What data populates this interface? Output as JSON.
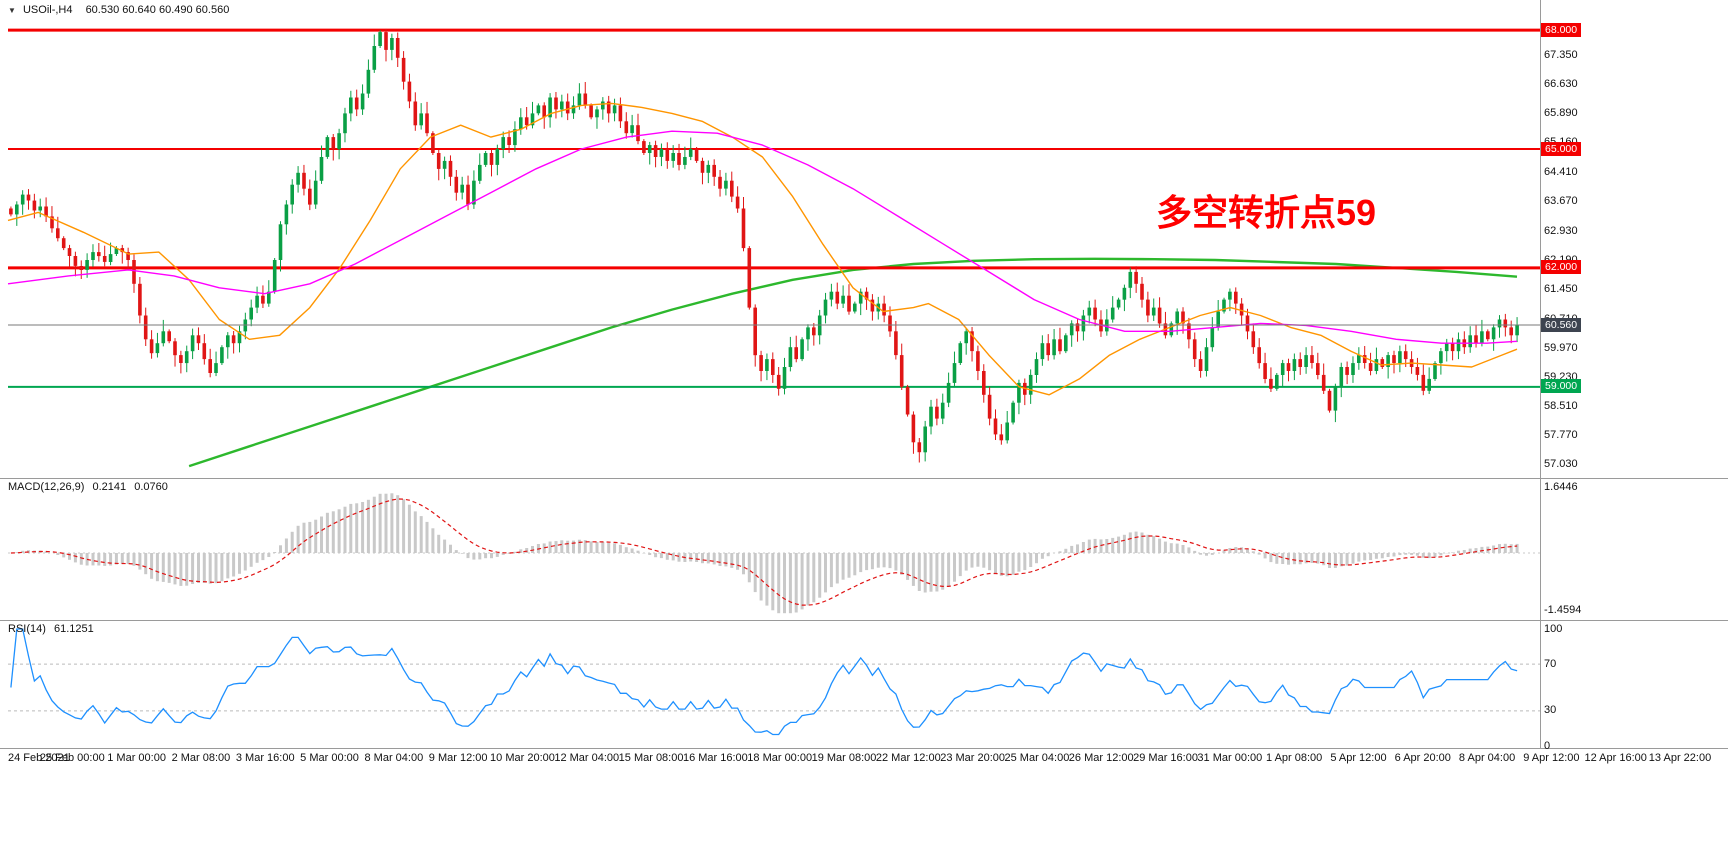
{
  "header": {
    "collapse_icon": "▼",
    "symbol_timeframe": "USOil-,H4",
    "ohlc": "60.530 60.640 60.490 60.560"
  },
  "annotation": {
    "text": "多空转折点59",
    "color": "#ff0000"
  },
  "colors": {
    "background": "#ffffff",
    "pane_border": "#9a9a9a",
    "text": "#111111",
    "up_candle": "#0a9f45",
    "down_candle": "#e01515",
    "resistance_line": "#f40000",
    "support_line": "#00a651",
    "current_price_badge": "#3d4450"
  },
  "chart_data": [
    {
      "type": "candlestick",
      "symbol": "USOil-",
      "timeframe": "H4",
      "ohlc_display": {
        "open": "60.530",
        "high": "60.640",
        "low": "60.490",
        "close": "60.560"
      },
      "ylim": [
        56.7,
        68.76
      ],
      "y_ticks": [
        "67.350",
        "66.630",
        "65.890",
        "65.160",
        "64.410",
        "63.670",
        "62.930",
        "62.190",
        "61.450",
        "60.710",
        "59.970",
        "59.230",
        "58.510",
        "57.770",
        "57.030"
      ],
      "hlines": [
        {
          "price": 68.0,
          "label": "68.000",
          "color": "#f40000",
          "width": 3
        },
        {
          "price": 65.0,
          "label": "65.000",
          "color": "#f40000",
          "width": 2
        },
        {
          "price": 62.0,
          "label": "62.000",
          "color": "#f40000",
          "width": 3
        },
        {
          "price": 59.0,
          "label": "59.000",
          "color": "#00a651",
          "width": 2
        }
      ],
      "current_price": {
        "value": 60.56,
        "label": "60.560",
        "line_color": "#7a7a7a",
        "badge_color": "#3d4450"
      },
      "up_color": "#0a9f45",
      "down_color": "#e01515",
      "x_labels": [
        "24 Feb 2021",
        "25 Feb 00:00",
        "1 Mar 00:00",
        "2 Mar 08:00",
        "3 Mar 16:00",
        "5 Mar 00:00",
        "8 Mar 04:00",
        "9 Mar 12:00",
        "10 Mar 20:00",
        "12 Mar 04:00",
        "15 Mar 08:00",
        "16 Mar 16:00",
        "18 Mar 00:00",
        "19 Mar 08:00",
        "22 Mar 12:00",
        "23 Mar 20:00",
        "25 Mar 04:00",
        "26 Mar 12:00",
        "29 Mar 16:00",
        "31 Mar 00:00",
        "1 Apr 08:00",
        "5 Apr 12:00",
        "6 Apr 20:00",
        "8 Apr 04:00",
        "9 Apr 12:00",
        "12 Apr 16:00",
        "13 Apr 22:00"
      ],
      "closes": [
        63.35,
        63.6,
        63.85,
        63.7,
        63.45,
        63.55,
        63.3,
        63.0,
        62.75,
        62.5,
        62.3,
        62.05,
        61.95,
        62.2,
        62.4,
        62.3,
        62.15,
        62.35,
        62.5,
        62.4,
        62.2,
        61.6,
        60.8,
        60.2,
        59.85,
        60.1,
        60.4,
        60.15,
        59.8,
        59.6,
        59.9,
        60.3,
        60.1,
        59.7,
        59.35,
        59.6,
        60.0,
        60.3,
        60.1,
        60.4,
        60.7,
        61.0,
        61.3,
        61.1,
        61.4,
        62.2,
        63.1,
        63.6,
        64.1,
        64.4,
        64.0,
        63.6,
        64.2,
        64.8,
        65.3,
        65.0,
        65.4,
        65.9,
        66.3,
        66.0,
        66.4,
        67.0,
        67.6,
        67.95,
        67.5,
        67.8,
        67.3,
        66.7,
        66.2,
        65.6,
        65.9,
        65.4,
        64.9,
        64.5,
        64.7,
        64.3,
        63.9,
        64.1,
        63.6,
        64.2,
        64.6,
        64.9,
        64.6,
        65.0,
        65.3,
        65.1,
        65.5,
        65.8,
        65.6,
        65.9,
        66.1,
        65.8,
        66.3,
        66.0,
        66.2,
        65.9,
        66.1,
        66.4,
        66.1,
        65.8,
        66.0,
        66.2,
        65.9,
        66.1,
        65.7,
        65.4,
        65.6,
        65.2,
        64.9,
        65.1,
        64.8,
        65.0,
        64.7,
        64.9,
        64.6,
        64.8,
        65.0,
        64.7,
        64.4,
        64.6,
        64.3,
        64.0,
        64.2,
        63.8,
        63.5,
        62.5,
        61.0,
        59.8,
        59.4,
        59.7,
        59.3,
        58.95,
        59.5,
        60.0,
        59.7,
        60.2,
        60.5,
        60.3,
        60.8,
        61.2,
        61.4,
        61.1,
        61.3,
        60.9,
        61.1,
        61.4,
        61.2,
        60.9,
        61.1,
        60.8,
        60.4,
        59.8,
        59.0,
        58.3,
        57.6,
        57.35,
        58.0,
        58.5,
        58.2,
        58.6,
        59.1,
        59.6,
        60.1,
        60.4,
        59.9,
        59.4,
        58.8,
        58.2,
        57.8,
        57.65,
        58.1,
        58.6,
        59.1,
        58.8,
        59.3,
        59.7,
        60.1,
        59.8,
        60.2,
        59.9,
        60.3,
        60.6,
        60.4,
        60.8,
        61.0,
        60.7,
        60.4,
        60.7,
        61.0,
        61.2,
        61.5,
        61.9,
        61.6,
        61.2,
        60.8,
        61.0,
        60.6,
        60.3,
        60.6,
        60.9,
        60.6,
        60.2,
        59.7,
        59.4,
        60.0,
        60.5,
        60.9,
        61.2,
        61.4,
        61.1,
        60.8,
        60.4,
        60.0,
        59.6,
        59.2,
        58.95,
        59.3,
        59.6,
        59.4,
        59.7,
        59.5,
        59.8,
        59.6,
        59.3,
        58.9,
        58.4,
        59.0,
        59.5,
        59.3,
        59.6,
        59.8,
        59.6,
        59.4,
        59.7,
        59.5,
        59.8,
        59.6,
        59.9,
        59.7,
        59.5,
        59.3,
        58.9,
        59.2,
        59.6,
        59.9,
        60.1,
        59.9,
        60.2,
        60.0,
        60.3,
        60.1,
        60.4,
        60.2,
        60.5,
        60.7,
        60.5,
        60.3,
        60.56
      ],
      "ma_lines": [
        {
          "name": "ma-orange-line",
          "color": "#ff9500",
          "width": 1.4,
          "points": [
            [
              0,
              63.2
            ],
            [
              0.02,
              63.4
            ],
            [
              0.05,
              62.9
            ],
            [
              0.08,
              62.35
            ],
            [
              0.1,
              62.4
            ],
            [
              0.12,
              61.7
            ],
            [
              0.14,
              60.7
            ],
            [
              0.16,
              60.2
            ],
            [
              0.18,
              60.3
            ],
            [
              0.2,
              61.0
            ],
            [
              0.22,
              62.0
            ],
            [
              0.24,
              63.2
            ],
            [
              0.26,
              64.5
            ],
            [
              0.28,
              65.3
            ],
            [
              0.3,
              65.6
            ],
            [
              0.32,
              65.3
            ],
            [
              0.34,
              65.5
            ],
            [
              0.36,
              65.9
            ],
            [
              0.38,
              66.1
            ],
            [
              0.4,
              66.15
            ],
            [
              0.42,
              66.05
            ],
            [
              0.44,
              65.9
            ],
            [
              0.46,
              65.7
            ],
            [
              0.48,
              65.3
            ],
            [
              0.5,
              64.8
            ],
            [
              0.52,
              63.8
            ],
            [
              0.54,
              62.6
            ],
            [
              0.56,
              61.5
            ],
            [
              0.58,
              60.9
            ],
            [
              0.6,
              61.0
            ],
            [
              0.61,
              61.1
            ],
            [
              0.63,
              60.7
            ],
            [
              0.65,
              59.8
            ],
            [
              0.67,
              59.0
            ],
            [
              0.69,
              58.8
            ],
            [
              0.71,
              59.2
            ],
            [
              0.73,
              59.8
            ],
            [
              0.75,
              60.2
            ],
            [
              0.77,
              60.5
            ],
            [
              0.79,
              60.8
            ],
            [
              0.81,
              61.0
            ],
            [
              0.83,
              60.8
            ],
            [
              0.85,
              60.5
            ],
            [
              0.87,
              60.3
            ],
            [
              0.89,
              59.9
            ],
            [
              0.91,
              59.55
            ],
            [
              0.93,
              59.6
            ],
            [
              0.95,
              59.55
            ],
            [
              0.97,
              59.5
            ],
            [
              0.99,
              59.8
            ],
            [
              1,
              59.95
            ]
          ]
        },
        {
          "name": "ma-magenta-line",
          "color": "#ff00ff",
          "width": 1.4,
          "points": [
            [
              0,
              61.6
            ],
            [
              0.04,
              61.8
            ],
            [
              0.08,
              61.95
            ],
            [
              0.11,
              61.8
            ],
            [
              0.14,
              61.5
            ],
            [
              0.17,
              61.35
            ],
            [
              0.2,
              61.6
            ],
            [
              0.23,
              62.1
            ],
            [
              0.26,
              62.7
            ],
            [
              0.29,
              63.3
            ],
            [
              0.32,
              63.9
            ],
            [
              0.35,
              64.5
            ],
            [
              0.38,
              65.0
            ],
            [
              0.41,
              65.3
            ],
            [
              0.44,
              65.45
            ],
            [
              0.47,
              65.4
            ],
            [
              0.5,
              65.1
            ],
            [
              0.53,
              64.6
            ],
            [
              0.56,
              64.0
            ],
            [
              0.59,
              63.3
            ],
            [
              0.62,
              62.6
            ],
            [
              0.65,
              61.9
            ],
            [
              0.68,
              61.2
            ],
            [
              0.71,
              60.7
            ],
            [
              0.74,
              60.4
            ],
            [
              0.77,
              60.4
            ],
            [
              0.8,
              60.5
            ],
            [
              0.83,
              60.6
            ],
            [
              0.86,
              60.55
            ],
            [
              0.89,
              60.4
            ],
            [
              0.92,
              60.2
            ],
            [
              0.95,
              60.1
            ],
            [
              0.98,
              60.1
            ],
            [
              1,
              60.15
            ]
          ]
        },
        {
          "name": "ma-green-line",
          "color": "#2db82d",
          "width": 2.4,
          "points": [
            [
              0.12,
              57.0
            ],
            [
              0.16,
              57.5
            ],
            [
              0.2,
              58.0
            ],
            [
              0.24,
              58.5
            ],
            [
              0.28,
              59.0
            ],
            [
              0.32,
              59.5
            ],
            [
              0.36,
              60.0
            ],
            [
              0.4,
              60.5
            ],
            [
              0.44,
              60.95
            ],
            [
              0.48,
              61.35
            ],
            [
              0.52,
              61.7
            ],
            [
              0.56,
              61.95
            ],
            [
              0.6,
              62.1
            ],
            [
              0.64,
              62.18
            ],
            [
              0.68,
              62.22
            ],
            [
              0.72,
              62.23
            ],
            [
              0.76,
              62.22
            ],
            [
              0.8,
              62.2
            ],
            [
              0.84,
              62.15
            ],
            [
              0.88,
              62.1
            ],
            [
              0.92,
              62.0
            ],
            [
              0.96,
              61.9
            ],
            [
              1,
              61.78
            ]
          ]
        }
      ]
    },
    {
      "type": "macd",
      "label": "MACD(12,26,9)",
      "value_main": "0.2141",
      "value_signal": "0.0760",
      "params": {
        "fast": 12,
        "slow": 26,
        "signal": 9
      },
      "y_ticks": [
        "1.6446",
        "-1.4594"
      ],
      "ylim": [
        -1.4594,
        1.6446
      ],
      "hist_color": "#c9c9c9",
      "signal_color": "#e01515",
      "signal_style": "dashed"
    },
    {
      "type": "rsi",
      "label": "RSI(14)",
      "value": "61.1251",
      "period": 14,
      "line_color": "#1e90ff",
      "levels": [
        70,
        30
      ],
      "y_ticks": [
        "100",
        "70",
        "30",
        "0"
      ],
      "range": [
        0,
        100
      ]
    }
  ]
}
